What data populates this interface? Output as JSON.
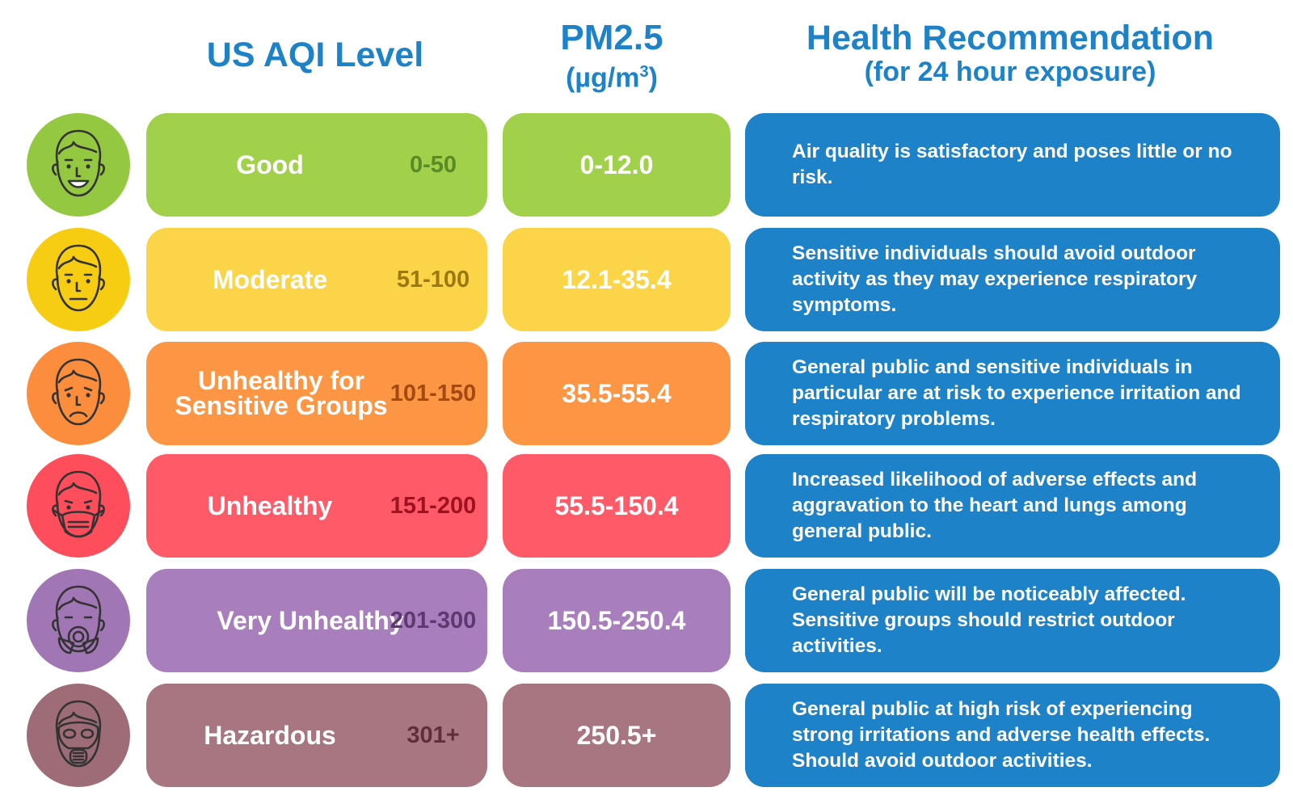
{
  "headers": {
    "aqi_level": "US AQI Level",
    "pm_title": "PM2.5",
    "pm_unit_prefix": "(µg/m",
    "pm_unit_sup": "3",
    "pm_unit_suffix": ")",
    "health_title": "Health Recommendation",
    "health_subtitle": "(for 24 hour exposure)"
  },
  "colors": {
    "header_text": "#1d82c7",
    "health_box": "#1d82c7"
  },
  "rows": [
    {
      "icon": "smiling-face-icon",
      "level": "Good",
      "range": "0-50",
      "pm": "0-12.0",
      "health": "Air quality is satisfactory and poses little or no risk.",
      "color": "#a1d14b",
      "circle_color": "#93c840",
      "range_color": "#5a8a25"
    },
    {
      "icon": "neutral-face-icon",
      "level": "Moderate",
      "range": "51-100",
      "pm": "12.1-35.4",
      "health": "Sensitive individuals should avoid outdoor activity as they may experience respiratory symptoms.",
      "color": "#fbd447",
      "circle_color": "#f6cd13",
      "range_color": "#9a7912"
    },
    {
      "icon": "frowning-face-icon",
      "level": "Unhealthy for Sensitive Groups",
      "range": "101-150",
      "pm": "35.5-55.4",
      "health": "General public and sensitive individuals in particular are at risk to experience irritation and respiratory problems.",
      "color": "#fc9645",
      "circle_color": "#fb8d3d",
      "range_color": "#a34a12"
    },
    {
      "icon": "face-mask-icon",
      "level": "Unhealthy",
      "range": "151-200",
      "pm": "55.5-150.4",
      "health": "Increased likelihood of adverse effects and aggravation to the heart and lungs among general public.",
      "color": "#fe5a68",
      "circle_color": "#fe4d5b",
      "range_color": "#9e1220"
    },
    {
      "icon": "respirator-mask-icon",
      "level": "Very Unhealthy",
      "range": "201-300",
      "pm": "150.5-250.4",
      "health": "General public will be noticeably affected. Sensitive groups should restrict outdoor activities.",
      "color": "#a97ebd",
      "circle_color": "#a176b5",
      "range_color": "#5c3a6e"
    },
    {
      "icon": "gas-mask-icon",
      "level": "Hazardous",
      "range": "301+",
      "pm": "250.5+",
      "health": "General public at high risk of experiencing strong irritations and adverse health effects. Should avoid outdoor activities.",
      "color": "#a77680",
      "circle_color": "#9e6c77",
      "range_color": "#5e2f3b"
    }
  ]
}
